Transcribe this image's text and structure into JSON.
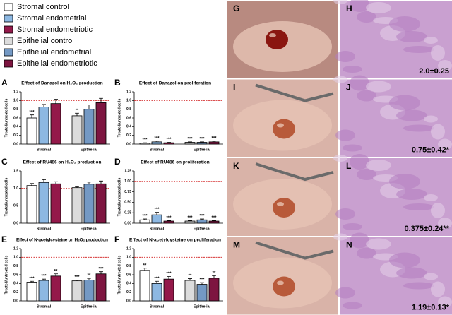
{
  "legend": [
    {
      "name": "Stromal control",
      "color": "#ffffff"
    },
    {
      "name": "Stromal endometrial",
      "color": "#8db8e2"
    },
    {
      "name": "Stromal endometriotic",
      "color": "#94194a"
    },
    {
      "name": "Epithelial control",
      "color": "#dcdcdc"
    },
    {
      "name": "Epithelial endometrial",
      "color": "#7499c4"
    },
    {
      "name": "Epithelial endometriotic",
      "color": "#7d1540"
    }
  ],
  "chart_data": [
    {
      "type": "bar",
      "letter": "A",
      "title": "Effect of Danazol on H₂O₂ production",
      "ylabel": "Treated/untreated cells",
      "groups": [
        "Stromal",
        "Epithelial"
      ],
      "values": [
        0.6,
        0.85,
        0.93,
        0.65,
        0.8,
        0.95
      ],
      "errors": [
        0.07,
        0.06,
        0.1,
        0.06,
        0.1,
        0.1
      ],
      "annotations": [
        "***",
        null,
        null,
        "**",
        null,
        null
      ],
      "refline": 1,
      "ylim": [
        0,
        1.2
      ],
      "yticks": [
        {
          "value": 0,
          "label": "0.0"
        },
        0.2,
        0.4,
        0.6,
        0.8,
        {
          "value": 1,
          "label": "1.0"
        },
        1.2
      ]
    },
    {
      "type": "bar",
      "letter": "B",
      "title": "Effect of Danazol on proliferation",
      "ylabel": "Treated/untreated cells",
      "groups": [
        "Stromal",
        "Epithelial"
      ],
      "values": [
        0.02,
        0.05,
        0.03,
        0.04,
        0.04,
        0.05
      ],
      "errors": [
        0.01,
        0.02,
        0.01,
        0.01,
        0.01,
        0.02
      ],
      "annotations": [
        "***",
        "***",
        "***",
        "***",
        "***",
        "***"
      ],
      "refline": 1,
      "ylim": [
        0,
        1.2
      ],
      "yticks": [
        {
          "value": 0,
          "label": "0.0"
        },
        0.2,
        0.4,
        0.6,
        0.8,
        {
          "value": 1,
          "label": "1.0"
        },
        1.2
      ]
    },
    {
      "type": "bar",
      "letter": "C",
      "title": "Effect of RU486 on H₂O₂ production",
      "ylabel": "Treated/untreated cells",
      "groups": [
        "Stromal",
        "Epithelial"
      ],
      "values": [
        1.08,
        1.17,
        1.13,
        1.02,
        1.12,
        1.13
      ],
      "errors": [
        0.06,
        0.08,
        0.06,
        0.03,
        0.06,
        0.08
      ],
      "annotations": [
        null,
        null,
        null,
        null,
        null,
        null
      ],
      "refline": 1,
      "ylim": [
        0,
        1.5
      ],
      "yticks": [
        {
          "value": 0,
          "label": "0.0"
        },
        0.5,
        {
          "value": 1,
          "label": "1.0"
        },
        1.5
      ]
    },
    {
      "type": "bar",
      "letter": "D",
      "title": "Effect of RU486 on proliferation",
      "ylabel": "Treated/untreated cells",
      "groups": [
        "Stromal",
        "Epithelial"
      ],
      "values": [
        0.08,
        0.2,
        0.05,
        0.05,
        0.08,
        0.05
      ],
      "errors": [
        0.02,
        0.06,
        0.01,
        0.01,
        0.02,
        0.01
      ],
      "annotations": [
        "***",
        "***",
        "***",
        "***",
        "***",
        "***"
      ],
      "refline": 1,
      "ylim": [
        0,
        1.25
      ],
      "yticks": [
        {
          "value": 0,
          "label": "0.00"
        },
        0.25,
        {
          "value": 0.5,
          "label": "0.50"
        },
        0.75,
        {
          "value": 1,
          "label": "1.00"
        },
        1.25
      ]
    },
    {
      "type": "bar",
      "letter": "E",
      "title": "Effect of N-acetylcysteine on H₂O₂ production",
      "ylabel": "Treated/untreated cells",
      "groups": [
        "Stromal",
        "Epithelial"
      ],
      "values": [
        0.43,
        0.47,
        0.57,
        0.46,
        0.48,
        0.62
      ],
      "errors": [
        0.02,
        0.03,
        0.05,
        0.02,
        0.04,
        0.05
      ],
      "annotations": [
        "***",
        "***",
        "**",
        "***",
        "**",
        "***"
      ],
      "refline": 1,
      "ylim": [
        0,
        1.2
      ],
      "yticks": [
        {
          "value": 0,
          "label": "0.0"
        },
        0.2,
        0.4,
        0.6,
        0.8,
        {
          "value": 1,
          "label": "1.0"
        },
        1.2
      ]
    },
    {
      "type": "bar",
      "letter": "F",
      "title": "Effect of N-acetylcysteine on proliferation",
      "ylabel": "Treated/untreated cells",
      "groups": [
        "Stromal",
        "Epithelial"
      ],
      "values": [
        0.7,
        0.4,
        0.5,
        0.47,
        0.38,
        0.52
      ],
      "errors": [
        0.05,
        0.05,
        0.06,
        0.04,
        0.04,
        0.06
      ],
      "annotations": [
        "**",
        "***",
        "***",
        "**",
        "***",
        "**"
      ],
      "refline": 1,
      "ylim": [
        0,
        1.2
      ],
      "yticks": [
        {
          "value": 0,
          "label": "0.0"
        },
        0.2,
        0.4,
        0.6,
        0.8,
        {
          "value": 1,
          "label": "1.0"
        },
        1.2
      ]
    }
  ],
  "photos": [
    {
      "letter": "G"
    },
    {
      "letter": "I"
    },
    {
      "letter": "K"
    },
    {
      "letter": "M"
    }
  ],
  "histology": [
    {
      "letter": "H",
      "caption": "2.0±0.25"
    },
    {
      "letter": "J",
      "caption": "0.75±0.42*"
    },
    {
      "letter": "L",
      "caption": "0.375±0.24**"
    },
    {
      "letter": "N",
      "caption": "1.19±0.13*"
    }
  ]
}
